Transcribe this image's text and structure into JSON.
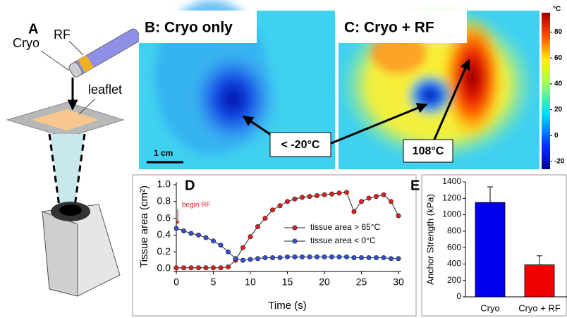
{
  "panel_a": {
    "label": "A",
    "cryo": "Cryo",
    "rf": "RF",
    "leaflet": "leaflet"
  },
  "panel_b": {
    "title": "B: Cryo only",
    "scale": "1 cm"
  },
  "panel_c": {
    "title": "C: Cryo + RF"
  },
  "annotations": {
    "cold": "< -20°C",
    "hot": "108°C"
  },
  "colorbar": {
    "unit": "°C",
    "lim": [
      -26,
      95
    ],
    "ticks": [
      -20,
      0,
      20,
      40,
      60,
      80
    ]
  },
  "chart_data": [
    {
      "type": "line",
      "label": "D",
      "annotation": "begin RF",
      "xlabel": "Time (s)",
      "ylabel": "Tissue area (cm²)",
      "x": [
        0,
        1,
        2,
        3,
        4,
        5,
        6,
        7,
        8,
        9,
        10,
        11,
        12,
        13,
        14,
        15,
        16,
        17,
        18,
        19,
        20,
        21,
        22,
        23,
        24,
        25,
        26,
        27,
        28,
        29,
        30
      ],
      "xlim": [
        0,
        30
      ],
      "xticks": [
        0,
        5,
        10,
        15,
        20,
        25,
        30
      ],
      "ylim": [
        0,
        1
      ],
      "yticks": [
        {
          "value": 0,
          "label": "0.0"
        },
        {
          "value": 0.2,
          "label": "0.2"
        },
        {
          "value": 0.4,
          "label": "0.4"
        },
        {
          "value": 0.6,
          "label": "0.6"
        },
        {
          "value": 0.8,
          "label": "0.8"
        },
        {
          "value": 1,
          "label": "1.0"
        }
      ],
      "series": [
        {
          "name": "tissue area > 65°C",
          "color": "#e02020",
          "values": [
            0.01,
            0.01,
            0.01,
            0.01,
            0.01,
            0.01,
            0.01,
            0.02,
            0.1,
            0.25,
            0.38,
            0.5,
            0.6,
            0.7,
            0.75,
            0.8,
            0.83,
            0.85,
            0.86,
            0.87,
            0.88,
            0.89,
            0.9,
            0.91,
            0.68,
            0.8,
            0.84,
            0.86,
            0.88,
            0.8,
            0.63
          ]
        },
        {
          "name": "tissue area < 0°C",
          "color": "#3050d0",
          "values": [
            0.48,
            0.45,
            0.42,
            0.4,
            0.37,
            0.33,
            0.28,
            0.2,
            0.12,
            0.1,
            0.11,
            0.12,
            0.13,
            0.13,
            0.13,
            0.14,
            0.14,
            0.14,
            0.14,
            0.14,
            0.14,
            0.14,
            0.14,
            0.14,
            0.13,
            0.13,
            0.13,
            0.13,
            0.13,
            0.12,
            0.12
          ]
        }
      ]
    },
    {
      "type": "bar",
      "label": "E",
      "ylabel": "Anchor Strength (kPa)",
      "categories": [
        "Cryo",
        "Cryo + RF"
      ],
      "values": [
        1150,
        390
      ],
      "errors": [
        190,
        110
      ],
      "colors": [
        "#0000ee",
        "#ee0000"
      ],
      "ylim": [
        0,
        1400
      ],
      "yticks": [
        0,
        200,
        400,
        600,
        800,
        1000,
        1200,
        1400
      ]
    }
  ]
}
